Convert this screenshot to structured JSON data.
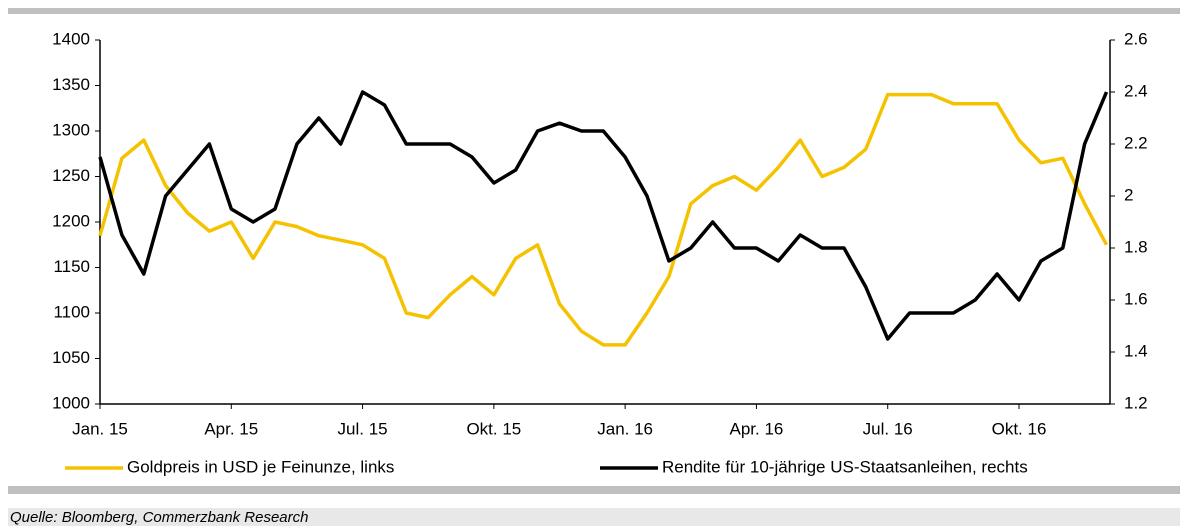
{
  "chart_data": {
    "type": "line",
    "categories": [
      "Jan. 15",
      null,
      null,
      null,
      null,
      null,
      "Apr. 15",
      null,
      null,
      null,
      null,
      null,
      "Jul. 15",
      null,
      null,
      null,
      null,
      null,
      "Okt. 15",
      null,
      null,
      null,
      null,
      null,
      "Jan. 16",
      null,
      null,
      null,
      null,
      null,
      "Apr. 16",
      null,
      null,
      null,
      null,
      null,
      "Jul. 16",
      null,
      null,
      null,
      null,
      null,
      "Okt. 16",
      null,
      null,
      null,
      null
    ],
    "series": [
      {
        "name": "Goldpreis in USD je Feinunze, links",
        "color": "#f5c200",
        "axis": "y",
        "values": [
          1185,
          1270,
          1290,
          1240,
          1210,
          1190,
          1200,
          1160,
          1200,
          1195,
          1185,
          1180,
          1175,
          1160,
          1100,
          1095,
          1120,
          1140,
          1120,
          1160,
          1175,
          1110,
          1080,
          1065,
          1065,
          1100,
          1140,
          1220,
          1240,
          1250,
          1235,
          1260,
          1290,
          1250,
          1260,
          1280,
          1340,
          1340,
          1340,
          1330,
          1330,
          1330,
          1290,
          1265,
          1270,
          1220,
          1175
        ]
      },
      {
        "name": "Rendite für 10-jährige US-Staatsanleihen, rechts",
        "color": "#000000",
        "axis": "y2",
        "values": [
          2.15,
          1.85,
          1.7,
          2.0,
          2.1,
          2.2,
          1.95,
          1.9,
          1.95,
          2.2,
          2.3,
          2.2,
          2.4,
          2.35,
          2.2,
          2.2,
          2.2,
          2.15,
          2.05,
          2.1,
          2.25,
          2.28,
          2.25,
          2.25,
          2.15,
          2.0,
          1.75,
          1.8,
          1.9,
          1.8,
          1.8,
          1.75,
          1.85,
          1.8,
          1.8,
          1.65,
          1.45,
          1.55,
          1.55,
          1.55,
          1.6,
          1.7,
          1.6,
          1.75,
          1.8,
          2.2,
          2.4
        ]
      }
    ],
    "ylim": [
      1000,
      1400
    ],
    "yticks": [
      1000,
      1050,
      1100,
      1150,
      1200,
      1250,
      1300,
      1350,
      1400
    ],
    "y2lim": [
      1.2,
      2.6
    ],
    "y2ticks": [
      1.2,
      1.4,
      1.6,
      1.8,
      2,
      2.2,
      2.4,
      2.6
    ],
    "legend": "bottom",
    "source": "Quelle: Bloomberg, Commerzbank Research"
  }
}
